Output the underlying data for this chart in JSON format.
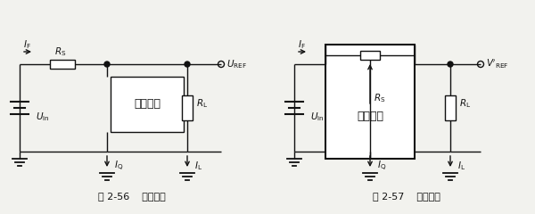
{
  "fig_width": 6.0,
  "fig_height": 2.4,
  "dpi": 100,
  "bg_color": "#f2f2ee",
  "line_color": "#111111",
  "caption1": "图 2-56    并联基准",
  "caption2": "图 2-57    串联基准",
  "label_binglianjunzhun": "并联基准",
  "label_chuanlianjunzhun": "串联基准"
}
